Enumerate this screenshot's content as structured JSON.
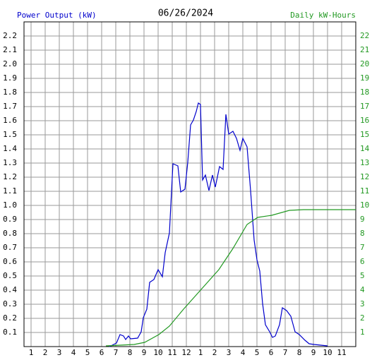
{
  "chart_data": {
    "type": "line",
    "title": "06/26/2024",
    "y_label": "Power Output (kW)",
    "y2_label": "Daily kW-Hours",
    "xlim": [
      0.5,
      24
    ],
    "xticks": [
      1,
      2,
      3,
      4,
      5,
      6,
      7,
      8,
      9,
      10,
      11,
      12,
      {
        "value": 13,
        "label": "1"
      },
      {
        "value": 14,
        "label": "2"
      },
      {
        "value": 15,
        "label": "3"
      },
      {
        "value": 16,
        "label": "4"
      },
      {
        "value": 17,
        "label": "5"
      },
      {
        "value": 18,
        "label": "6"
      },
      {
        "value": 19,
        "label": "7"
      },
      {
        "value": 20,
        "label": "8"
      },
      {
        "value": 21,
        "label": "9"
      },
      {
        "value": 22,
        "label": "10"
      },
      {
        "value": 23,
        "label": "11"
      }
    ],
    "ylim": [
      0,
      2.3
    ],
    "yticks": [
      0.1,
      0.2,
      0.3,
      0.4,
      0.5,
      0.6,
      0.7,
      0.8,
      0.9,
      {
        "value": 1,
        "label": "1.0"
      },
      1.1,
      1.2,
      1.3,
      1.4,
      1.5,
      1.6,
      1.7,
      1.8,
      1.9,
      {
        "value": 2,
        "label": "2.0"
      },
      2.1,
      2.2
    ],
    "y2lim": [
      0,
      23
    ],
    "y2ticks": [
      1,
      2,
      3,
      4,
      5,
      6,
      7,
      8,
      9,
      10,
      11,
      12,
      13,
      14,
      15,
      16,
      17,
      18,
      19,
      20,
      21,
      22
    ],
    "grid": true,
    "series": [
      {
        "name": "Power Output (kW)",
        "color": "#0000cc",
        "x": [
          6.55,
          7.05,
          7.3,
          7.55,
          7.7,
          7.9,
          8.05,
          8.55,
          8.8,
          8.95,
          9.2,
          9.4,
          9.7,
          10.0,
          10.3,
          10.5,
          10.8,
          11.05,
          11.4,
          11.6,
          11.9,
          12.1,
          12.3,
          12.5,
          12.7,
          12.85,
          13.0,
          13.15,
          13.35,
          13.6,
          13.85,
          14.05,
          14.35,
          14.6,
          14.8,
          15.0,
          15.3,
          15.55,
          15.8,
          16.0,
          16.3,
          16.55,
          16.8,
          17.0,
          17.2,
          17.4,
          17.6,
          17.9,
          18.1,
          18.3,
          18.6,
          18.8,
          19.1,
          19.4,
          19.7,
          20.0,
          20.4,
          20.7,
          21.05,
          22.0
        ],
        "values": [
          0,
          0.025,
          0.085,
          0.075,
          0.05,
          0.075,
          0.055,
          0.06,
          0.105,
          0.205,
          0.265,
          0.455,
          0.475,
          0.545,
          0.495,
          0.665,
          0.805,
          1.295,
          1.28,
          1.095,
          1.115,
          1.305,
          1.57,
          1.605,
          1.665,
          1.725,
          1.715,
          1.18,
          1.215,
          1.105,
          1.215,
          1.13,
          1.275,
          1.255,
          1.645,
          1.505,
          1.525,
          1.475,
          1.39,
          1.475,
          1.415,
          1.105,
          0.755,
          0.615,
          0.535,
          0.305,
          0.155,
          0.105,
          0.065,
          0.075,
          0.155,
          0.275,
          0.255,
          0.215,
          0.105,
          0.085,
          0.045,
          0.02,
          0.015,
          0.005
        ]
      },
      {
        "name": "Daily kW-Hours",
        "color": "#229922",
        "axis": "y2",
        "x": [
          6.3,
          8.3,
          9.05,
          10.05,
          10.8,
          11.8,
          13.05,
          14.3,
          15.3,
          16.3,
          17.05,
          18.05,
          19.3,
          20.3,
          24
        ],
        "values": [
          0.05,
          0.15,
          0.3,
          0.85,
          1.45,
          2.65,
          4.05,
          5.45,
          6.95,
          8.65,
          9.15,
          9.3,
          9.65,
          9.7,
          9.7
        ]
      }
    ]
  }
}
